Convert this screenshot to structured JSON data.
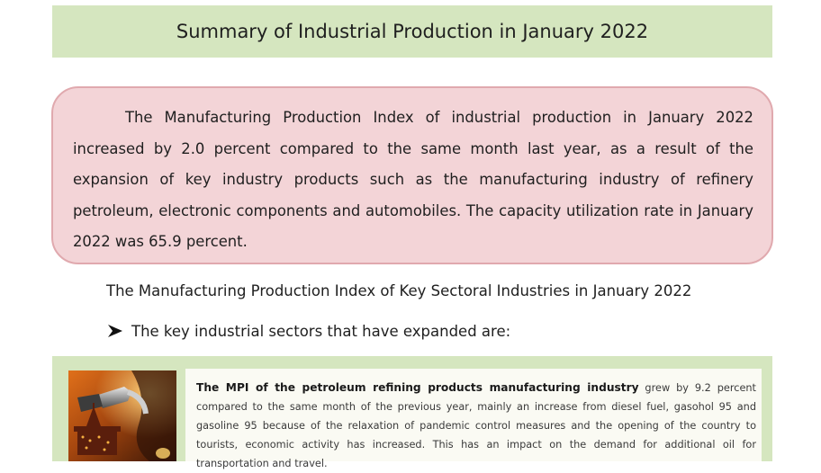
{
  "header": {
    "title": "Summary of Industrial Production in January 2022"
  },
  "summary": {
    "text": "The Manufacturing Production Index of industrial production in January 2022 increased by 2.0 percent compared to the same month last year, as a result of the expansion of key industry products such as the manufacturing industry of refinery petroleum, electronic components and automobiles. The capacity utilization rate in January 2022 was 65.9 percent."
  },
  "section": {
    "heading": "The Manufacturing Production Index of Key Sectoral Industries in January 2022",
    "bullet_icon": "arrow-bullet-icon",
    "bullet_text": "The key industrial sectors that have expanded are:"
  },
  "detail": {
    "image_subject": "fuel-nozzle-oil-rig-photo",
    "lead": "The MPI of the petroleum refining products manufacturing industry",
    "body": " grew by 9.2 percent compared to the same month of the previous year, mainly an increase from diesel fuel, gasohol 95 and gasoline 95 because of the relaxation of pandemic control measures and the opening of the country to tourists, economic activity has increased. This has an impact on the demand for additional oil for transportation and travel."
  },
  "colors": {
    "title_bg": "#d5e6bf",
    "summary_bg": "#f3d4d7",
    "summary_border": "#e0a9ae",
    "panel_bg": "#d5e6bf"
  }
}
